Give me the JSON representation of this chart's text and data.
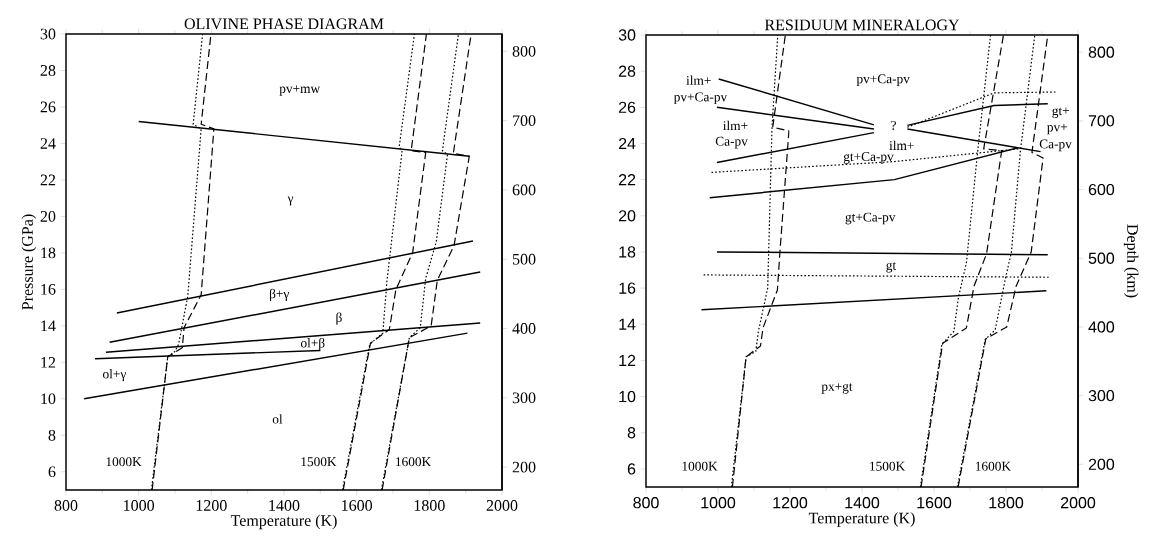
{
  "chart_data": [
    {
      "type": "line",
      "title": "OLIVINE PHASE DIAGRAM",
      "xlabel": "Temperature (K)",
      "ylabel": "Pressure (GPa)",
      "xlim": [
        800,
        2000
      ],
      "ylim": [
        5,
        30
      ],
      "xticks": [
        800,
        1000,
        1200,
        1400,
        1600,
        1800,
        2000
      ],
      "yticks": [
        6,
        8,
        10,
        12,
        14,
        16,
        18,
        20,
        22,
        24,
        26,
        28,
        30
      ],
      "y2lim": [
        167,
        825
      ],
      "y2ticks": [
        200,
        300,
        400,
        500,
        600,
        700,
        800
      ],
      "series": [
        {
          "color": "#000000",
          "line_style": "solid",
          "x": [
            1000,
            1910
          ],
          "values": [
            25.2,
            23.3
          ]
        },
        {
          "color": "#000000",
          "line_style": "solid",
          "x": [
            940,
            1920
          ],
          "values": [
            14.7,
            18.65
          ]
        },
        {
          "color": "#000000",
          "line_style": "solid",
          "x": [
            920,
            1940
          ],
          "values": [
            13.1,
            16.95
          ]
        },
        {
          "color": "#000000",
          "line_style": "solid",
          "x": [
            910,
            1940
          ],
          "values": [
            12.55,
            14.15
          ]
        },
        {
          "color": "#000000",
          "line_style": "solid",
          "x": [
            880,
            1500
          ],
          "values": [
            12.2,
            12.65
          ]
        },
        {
          "color": "#000000",
          "line_style": "solid",
          "x": [
            850,
            1905
          ],
          "values": [
            10.0,
            13.6
          ]
        },
        {
          "color": "#000000",
          "line_style": "dotted",
          "x": [
            1035,
            1080,
            1100,
            1110,
            1135,
            1172,
            1150,
            1176
          ],
          "values": [
            5,
            12.3,
            12.6,
            13,
            15.6,
            24.8,
            25.05,
            30
          ]
        },
        {
          "color": "#000000",
          "line_style": "dashed",
          "x": [
            1037,
            1080,
            1120,
            1125,
            1172,
            1207,
            1172,
            1199
          ],
          "values": [
            5,
            12.3,
            12.8,
            13.9,
            15.7,
            24.8,
            25.05,
            30
          ]
        },
        {
          "color": "#000000",
          "line_style": "dotted",
          "x": [
            1561,
            1636,
            1672,
            1683,
            1725,
            1717,
            1759
          ],
          "values": [
            5,
            13.0,
            13.6,
            16.4,
            23.6,
            23.8,
            30
          ]
        },
        {
          "color": "#000000",
          "line_style": "dashed",
          "x": [
            1563,
            1638,
            1690,
            1708,
            1754,
            1790,
            1750,
            1792
          ],
          "values": [
            5,
            13.05,
            13.8,
            16,
            18,
            23.5,
            23.6,
            30
          ]
        },
        {
          "color": "#000000",
          "line_style": "dotted",
          "x": [
            1668,
            1745,
            1775,
            1790,
            1819,
            1850,
            1836,
            1880
          ],
          "values": [
            5,
            13.35,
            13.9,
            16.6,
            18.6,
            23.4,
            23.6,
            30
          ]
        },
        {
          "color": "#000000",
          "line_style": "dashed",
          "x": [
            1670,
            1745,
            1805,
            1822,
            1868,
            1910,
            1866,
            1915
          ],
          "values": [
            5,
            13.35,
            14.0,
            16.5,
            18.4,
            23.3,
            23.45,
            30
          ]
        }
      ],
      "annotations": [
        "pv+mw",
        "γ",
        "β+γ",
        "β",
        "ol+β",
        "ol+γ",
        "ol",
        "1000K",
        "1500K",
        "1600K"
      ]
    },
    {
      "type": "line",
      "title": "RESIDUUM MINERALOGY",
      "xlabel": "Temperature (K)",
      "y2label": "Depth (km)",
      "xlim": [
        800,
        2000
      ],
      "ylim": [
        5,
        30
      ],
      "xticks": [
        800,
        1000,
        1200,
        1400,
        1600,
        1800,
        2000
      ],
      "yticks": [
        6,
        8,
        10,
        12,
        14,
        16,
        18,
        20,
        22,
        24,
        26,
        28,
        30
      ],
      "y2lim": [
        167,
        825
      ],
      "y2ticks": [
        200,
        300,
        400,
        500,
        600,
        700,
        800
      ],
      "series": [
        {
          "color": "#000000",
          "line_style": "solid",
          "x": [
            1002,
            1433
          ],
          "values": [
            27.57,
            25.03
          ]
        },
        {
          "color": "#000000",
          "line_style": "solid",
          "x": [
            997,
            1433
          ],
          "values": [
            26.0,
            24.8
          ]
        },
        {
          "color": "#000000",
          "line_style": "solid",
          "x": [
            997,
            1433
          ],
          "values": [
            22.95,
            24.6
          ]
        },
        {
          "color": "#000000",
          "line_style": "solid",
          "x": [
            1526,
            1896
          ],
          "values": [
            24.8,
            23.55
          ]
        },
        {
          "color": "#000000",
          "line_style": "solid",
          "x": [
            1526,
            1767,
            1916
          ],
          "values": [
            25.0,
            26.1,
            26.2
          ]
        },
        {
          "color": "#000000",
          "line_style": "solid",
          "x": [
            977,
            1490,
            1834
          ],
          "values": [
            21.0,
            22.0,
            23.77
          ]
        },
        {
          "color": "#000000",
          "line_style": "solid",
          "x": [
            997,
            1916
          ],
          "values": [
            18.0,
            17.85
          ]
        },
        {
          "color": "#000000",
          "line_style": "solid",
          "x": [
            954,
            1912
          ],
          "values": [
            14.8,
            15.85
          ]
        },
        {
          "color": "#000000",
          "line_style": "dotted",
          "x": [
            982,
            1490,
            1834
          ],
          "values": [
            22.4,
            23.0,
            23.7
          ]
        },
        {
          "color": "#000000",
          "line_style": "dotted",
          "x": [
            1526,
            1767,
            1942
          ],
          "values": [
            24.9,
            26.8,
            26.85
          ]
        },
        {
          "color": "#000000",
          "line_style": "dotted",
          "x": [
            960,
            1922
          ],
          "values": [
            16.73,
            16.6
          ]
        },
        {
          "color": "#000000",
          "line_style": "dotted",
          "x": [
            1037,
            1078,
            1105,
            1112,
            1138,
            1150,
            1166
          ],
          "values": [
            5,
            12.2,
            12.5,
            13.6,
            16,
            24.9,
            30
          ]
        },
        {
          "color": "#000000",
          "line_style": "dashed",
          "x": [
            1040,
            1078,
            1118,
            1125,
            1165,
            1172,
            1197,
            1152,
            1187
          ],
          "values": [
            5,
            12.2,
            12.8,
            13.8,
            15.9,
            18,
            24.7,
            24.9,
            30
          ]
        },
        {
          "color": "#000000",
          "line_style": "dotted",
          "x": [
            1562,
            1622,
            1655,
            1668,
            1690,
            1722,
            1757
          ],
          "values": [
            5,
            12.9,
            13.6,
            15.5,
            17.4,
            23.7,
            30
          ]
        },
        {
          "color": "#000000",
          "line_style": "dashed",
          "x": [
            1564,
            1624,
            1690,
            1711,
            1746,
            1788,
            1738,
            1793
          ],
          "values": [
            5,
            12.95,
            13.8,
            16.1,
            17.9,
            23.6,
            23.7,
            30
          ]
        },
        {
          "color": "#000000",
          "line_style": "dotted",
          "x": [
            1665,
            1742,
            1770,
            1798,
            1815,
            1840,
            1880
          ],
          "values": [
            5,
            13.15,
            13.7,
            16.5,
            18,
            23.6,
            30
          ]
        },
        {
          "color": "#000000",
          "line_style": "dashed",
          "x": [
            1667,
            1744,
            1802,
            1828,
            1870,
            1903,
            1872,
            1916
          ],
          "values": [
            5,
            13.2,
            13.85,
            16.1,
            18,
            23.2,
            23.5,
            30
          ]
        }
      ],
      "annotations": [
        "ilm+",
        "pv+Ca-pv",
        "ilm+",
        "Ca-pv",
        "pv+Ca-pv",
        "?",
        "ilm+",
        "gt+Ca-pv",
        "gt+",
        "pv+",
        "Ca-pv",
        "gt+Ca-pv",
        "gt",
        "px+gt",
        "1000K",
        "1500K",
        "1600K"
      ]
    }
  ]
}
